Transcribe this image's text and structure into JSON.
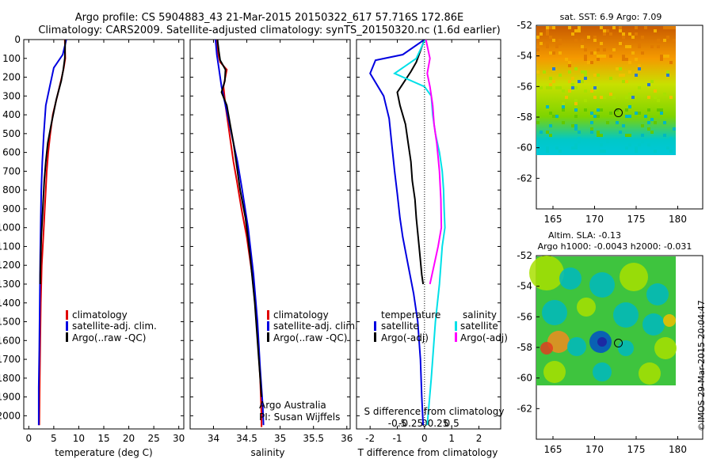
{
  "header": {
    "line1": "Argo profile: CS 5904883_43 21-Mar-2015 20150322_617 57.716S 172.86E",
    "line2": "Climatology: CARS2009. Satellite-adjusted climatology: synTS_20150320.nc (1.6d earlier)"
  },
  "colors": {
    "climatology": "#e00000",
    "satellite": "#0000e0",
    "argo": "#000000",
    "cyan": "#00e0e8",
    "magenta": "#ff00ff"
  },
  "sideways_label": "©IMOS 29-Mar-2015 20:04:47",
  "chart_data": [
    {
      "type": "line",
      "id": "temperature",
      "xlabel": "temperature (deg C)",
      "ylabel": "",
      "xlim": [
        -1,
        31
      ],
      "ylim": [
        2070,
        0
      ],
      "xticks": [
        "0",
        "5",
        "10",
        "15",
        "20",
        "25",
        "30"
      ],
      "yticks": [
        "0",
        "100",
        "200",
        "300",
        "400",
        "500",
        "600",
        "700",
        "800",
        "900",
        "1000",
        "1100",
        "1200",
        "1300",
        "1400",
        "1500",
        "1600",
        "1700",
        "1800",
        "1900",
        "2000"
      ],
      "legend": [
        "climatology",
        "satellite-adj. clim.",
        "Argo(..raw -QC)"
      ],
      "series": [
        {
          "name": "climatology",
          "color": "#e00000",
          "x": [
            7.2,
            7.3,
            7.0,
            6.6,
            5.7,
            4.8,
            4.3,
            3.9,
            3.6,
            3.4,
            3.2,
            3.0,
            2.6,
            2.4,
            2.3,
            2.2,
            2.1
          ],
          "y": [
            0,
            100,
            150,
            200,
            300,
            400,
            500,
            600,
            700,
            800,
            900,
            1000,
            1200,
            1400,
            1600,
            1800,
            2050
          ]
        },
        {
          "name": "satellite-adj. clim.",
          "color": "#0000e0",
          "x": [
            7.5,
            6.8,
            5.0,
            4.2,
            3.4,
            3.0,
            2.7,
            2.5,
            2.4,
            2.3,
            2.2,
            2.1,
            2.0,
            2.0
          ],
          "y": [
            0,
            80,
            150,
            250,
            350,
            500,
            650,
            800,
            950,
            1150,
            1400,
            1650,
            1850,
            2050
          ]
        },
        {
          "name": "Argo(..raw -QC)",
          "color": "#000000",
          "x": [
            7.3,
            7.2,
            6.9,
            6.5,
            5.5,
            4.5,
            3.8,
            3.4,
            3.1,
            2.9,
            2.7,
            2.5,
            2.4,
            2.3,
            2.3
          ],
          "y": [
            0,
            100,
            160,
            220,
            320,
            450,
            550,
            650,
            750,
            850,
            950,
            1050,
            1150,
            1250,
            1300
          ]
        }
      ]
    },
    {
      "type": "line",
      "id": "salinity",
      "xlabel": "salinity",
      "xlim": [
        33.65,
        36.05
      ],
      "ylim": [
        2070,
        0
      ],
      "xticks": [
        "34",
        "34.5",
        "35",
        "35.5",
        "36"
      ],
      "legend": [
        "climatology",
        "satellite-adj. clim.",
        "Argo(..raw -QC)"
      ],
      "annotation": [
        "Argo Australia",
        "PI: Susan Wijffels"
      ],
      "series": [
        {
          "name": "climatology",
          "color": "#e00000",
          "x": [
            34.05,
            34.06,
            34.1,
            34.2,
            34.15,
            34.18,
            34.22,
            34.26,
            34.3,
            34.35,
            34.42,
            34.5,
            34.58,
            34.65,
            34.7,
            34.72,
            34.72
          ],
          "y": [
            0,
            60,
            120,
            160,
            250,
            350,
            450,
            550,
            650,
            750,
            900,
            1050,
            1250,
            1500,
            1800,
            2000,
            2060
          ]
        },
        {
          "name": "satellite-adj. clim.",
          "color": "#0000e0",
          "x": [
            34.03,
            34.05,
            34.08,
            34.12,
            34.18,
            34.24,
            34.3,
            34.36,
            34.43,
            34.52,
            34.6,
            34.66,
            34.7,
            34.74,
            34.75
          ],
          "y": [
            0,
            80,
            150,
            250,
            350,
            450,
            550,
            650,
            800,
            1000,
            1250,
            1500,
            1750,
            1950,
            2050
          ]
        },
        {
          "name": "Argo(..raw -QC)",
          "color": "#000000",
          "x": [
            34.06,
            34.08,
            34.1,
            34.18,
            34.17,
            34.12,
            34.2,
            34.25,
            34.3,
            34.34,
            34.4,
            34.48,
            34.55,
            34.62,
            34.68,
            34.72
          ],
          "y": [
            0,
            60,
            110,
            160,
            220,
            280,
            350,
            450,
            550,
            650,
            800,
            950,
            1150,
            1400,
            1700,
            1900
          ]
        }
      ]
    },
    {
      "type": "line",
      "id": "difference",
      "xlabel": "T difference from climatology",
      "xlabel_top": "S difference from climatology",
      "xlim": [
        -2.5,
        2.8
      ],
      "ylim": [
        2070,
        0
      ],
      "xticks": [
        "-2",
        "-1",
        "0",
        "1",
        "2"
      ],
      "xticks_top": [
        "-0.5",
        "-0.25",
        "0",
        "0.25",
        "0.5"
      ],
      "legend_left_title": "temperature",
      "legend_right_title": "salinity",
      "legend": [
        "satellite",
        "Argo(-adj)",
        "satellite",
        "Argo(-adj)"
      ],
      "series": [
        {
          "name": "satellite",
          "color": "#0000e0",
          "x": [
            0,
            -0.8,
            -1.8,
            -2.0,
            -1.5,
            -1.3,
            -1.2,
            -1.1,
            -1.0,
            -0.9,
            -0.8,
            -0.6,
            -0.4,
            -0.25,
            -0.15,
            -0.1,
            -0.05
          ],
          "y": [
            0,
            80,
            110,
            180,
            300,
            420,
            560,
            700,
            820,
            950,
            1050,
            1200,
            1350,
            1500,
            1700,
            1900,
            2050
          ]
        },
        {
          "name": "Argo(-adj)",
          "color": "#000000",
          "x": [
            0,
            -0.3,
            -0.5,
            -1.0,
            -0.9,
            -0.7,
            -0.6,
            -0.5,
            -0.45,
            -0.35,
            -0.3,
            -0.2,
            -0.1,
            -0.05
          ],
          "y": [
            0,
            120,
            170,
            280,
            350,
            450,
            550,
            650,
            750,
            850,
            950,
            1100,
            1250,
            1300
          ]
        },
        {
          "name": "satellite",
          "color": "#00e0e8",
          "x": [
            0.02,
            -0.3,
            -1.1,
            0.0,
            0.25,
            0.3,
            0.4,
            0.55,
            0.65,
            0.7,
            0.72,
            0.75,
            0.65,
            0.55,
            0.4,
            0.25,
            0.1
          ],
          "y": [
            0,
            100,
            180,
            250,
            300,
            400,
            500,
            600,
            700,
            800,
            900,
            1000,
            1100,
            1300,
            1500,
            1800,
            2050
          ]
        },
        {
          "name": "Argo(-adj)",
          "color": "#ff00ff",
          "x": [
            0.05,
            0.2,
            0.1,
            0.2,
            0.3,
            0.35,
            0.45,
            0.55,
            0.6,
            0.62,
            0.5,
            0.35,
            0.2
          ],
          "y": [
            0,
            100,
            180,
            250,
            350,
            450,
            550,
            700,
            850,
            1000,
            1100,
            1200,
            1300
          ]
        }
      ]
    },
    {
      "type": "heatmap",
      "id": "sst-map",
      "title": "sat. SST: 6.9 Argo: 7.09",
      "xlim": [
        163,
        183
      ],
      "ylim": [
        -64,
        -52
      ],
      "xticks": [
        "165",
        "170",
        "175",
        "180"
      ],
      "yticks": [
        "-52",
        "-54",
        "-56",
        "-58",
        "-60",
        "-62"
      ],
      "marker": {
        "lon": 172.86,
        "lat": -57.716
      }
    },
    {
      "type": "heatmap",
      "id": "sla-map",
      "title": "Altim. SLA: -0.13",
      "subtitle": "Argo h1000: -0.0043 h2000: -0.031",
      "xlim": [
        163,
        183
      ],
      "ylim": [
        -64,
        -52
      ],
      "xticks": [
        "165",
        "170",
        "175",
        "180"
      ],
      "yticks": [
        "-52",
        "-54",
        "-56",
        "-58",
        "-60",
        "-62"
      ],
      "marker": {
        "lon": 172.86,
        "lat": -57.716
      }
    }
  ]
}
